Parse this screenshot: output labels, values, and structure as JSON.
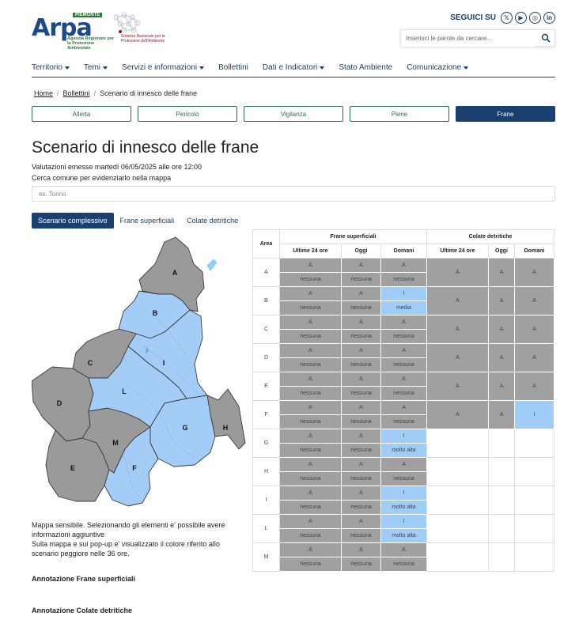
{
  "header": {
    "logo_text_main": "Arpa",
    "logo_region": "PIEMONTE",
    "logo_subtitle": "Agenzia Regionale per la Protezione Ambientale",
    "snpa_text": "Sistema Nazionale per la Protezione dell'Ambiente",
    "social_label": "SEGUICI SU",
    "social": [
      {
        "name": "x-icon",
        "glyph": "𝕏"
      },
      {
        "name": "youtube-icon",
        "glyph": "▶"
      },
      {
        "name": "instagram-icon",
        "glyph": "◎"
      },
      {
        "name": "linkedin-icon",
        "glyph": "in"
      }
    ],
    "search_placeholder": "Inserisci le parole da cercare..."
  },
  "nav": [
    {
      "label": "Territorio",
      "dropdown": true
    },
    {
      "label": "Temi",
      "dropdown": true
    },
    {
      "label": "Servizi e informazioni",
      "dropdown": true
    },
    {
      "label": "Bollettini",
      "dropdown": false
    },
    {
      "label": "Dati e Indicatori",
      "dropdown": true
    },
    {
      "label": "Stato Ambiente",
      "dropdown": false
    },
    {
      "label": "Comunicazione",
      "dropdown": true
    }
  ],
  "breadcrumb": {
    "home": "Home",
    "bollettini": "Bollettini",
    "current": "Scenario di innesco delle frane",
    "separator": "/"
  },
  "category_tabs": [
    {
      "label": "Allerta",
      "active": false
    },
    {
      "label": "Pericolo",
      "active": false
    },
    {
      "label": "Vigilanza",
      "active": false
    },
    {
      "label": "Piene",
      "active": false
    },
    {
      "label": "Frane",
      "active": true
    }
  ],
  "page": {
    "title": "Scenario di innesco delle frane",
    "valuation": "Valutazioni emesse martedì 06/05/2025 alle ore 12:00",
    "search_label": "Cerca comune per evidenziarlo nella mappa",
    "search_placeholder": "es. Torino"
  },
  "scenario_tabs": [
    {
      "label": "Scenario complessivo",
      "active": true
    },
    {
      "label": "Frane superficiali",
      "active": false
    },
    {
      "label": "Colate detritiche",
      "active": false
    }
  ],
  "map": {
    "note_1": "Mappa sensibile. Selezionando gli elementi e' possibile avere informazioni aggiuntive",
    "note_2": "Sulla mappa e sui pop-up e' visualizzato il colore riferito allo scenario peggiore nelle 36 ore.",
    "colors": {
      "grey": "#9a9a9a",
      "blue": "#a3cdf7",
      "border": "#3a3a3a",
      "lake": "#8fd0f0"
    },
    "areas": [
      {
        "id": "A",
        "level": "grey"
      },
      {
        "id": "B",
        "level": "blue"
      },
      {
        "id": "C",
        "level": "grey"
      },
      {
        "id": "D",
        "level": "grey"
      },
      {
        "id": "E",
        "level": "grey"
      },
      {
        "id": "F",
        "level": "blue"
      },
      {
        "id": "G",
        "level": "blue"
      },
      {
        "id": "H",
        "level": "grey"
      },
      {
        "id": "I",
        "level": "blue"
      },
      {
        "id": "L",
        "level": "blue"
      },
      {
        "id": "M",
        "level": "grey"
      }
    ]
  },
  "table": {
    "header_area": "Area",
    "group_frane": "Frane superficiali",
    "group_colate": "Colate detritiche",
    "sub_ultime": "Ultime 24 ore",
    "sub_oggi": "Oggi",
    "sub_domani": "Domani",
    "rows": [
      {
        "area": "A",
        "fs": [
          [
            "A",
            "nessuna"
          ],
          [
            "A",
            "nessuna"
          ],
          [
            "A",
            "nessuna"
          ]
        ],
        "fs_hl": [
          false,
          false,
          false
        ],
        "cd": [
          "A",
          "A",
          "A"
        ],
        "cd_hl": [
          false,
          false,
          false
        ]
      },
      {
        "area": "B",
        "fs": [
          [
            "A",
            "nessuna"
          ],
          [
            "A",
            "nessuna"
          ],
          [
            "I",
            "media"
          ]
        ],
        "fs_hl": [
          false,
          false,
          true
        ],
        "cd": [
          "A",
          "A",
          "A"
        ],
        "cd_hl": [
          false,
          false,
          false
        ]
      },
      {
        "area": "C",
        "fs": [
          [
            "A",
            "nessuna"
          ],
          [
            "A",
            "nessuna"
          ],
          [
            "A",
            "nessuna"
          ]
        ],
        "fs_hl": [
          false,
          false,
          false
        ],
        "cd": [
          "A",
          "A",
          "A"
        ],
        "cd_hl": [
          false,
          false,
          false
        ]
      },
      {
        "area": "D",
        "fs": [
          [
            "A",
            "nessuna"
          ],
          [
            "A",
            "nessuna"
          ],
          [
            "A",
            "nessuna"
          ]
        ],
        "fs_hl": [
          false,
          false,
          false
        ],
        "cd": [
          "A",
          "A",
          "A"
        ],
        "cd_hl": [
          false,
          false,
          false
        ]
      },
      {
        "area": "E",
        "fs": [
          [
            "A",
            "nessuna"
          ],
          [
            "A",
            "nessuna"
          ],
          [
            "A",
            "nessuna"
          ]
        ],
        "fs_hl": [
          false,
          false,
          false
        ],
        "cd": [
          "A",
          "A",
          "A"
        ],
        "cd_hl": [
          false,
          false,
          false
        ]
      },
      {
        "area": "F",
        "fs": [
          [
            "A",
            "nessuna"
          ],
          [
            "A",
            "nessuna"
          ],
          [
            "A",
            "nessuna"
          ]
        ],
        "fs_hl": [
          false,
          false,
          false
        ],
        "cd": [
          "A",
          "A",
          "I"
        ],
        "cd_hl": [
          false,
          false,
          true
        ]
      },
      {
        "area": "G",
        "fs": [
          [
            "A",
            "nessuna"
          ],
          [
            "A",
            "nessuna"
          ],
          [
            "I",
            "molto alta"
          ]
        ],
        "fs_hl": [
          false,
          false,
          true
        ],
        "cd": null
      },
      {
        "area": "H",
        "fs": [
          [
            "A",
            "nessuna"
          ],
          [
            "A",
            "nessuna"
          ],
          [
            "A",
            "nessuna"
          ]
        ],
        "fs_hl": [
          false,
          false,
          false
        ],
        "cd": null
      },
      {
        "area": "I",
        "fs": [
          [
            "A",
            "nessuna"
          ],
          [
            "A",
            "nessuna"
          ],
          [
            "I",
            "molto alta"
          ]
        ],
        "fs_hl": [
          false,
          false,
          true
        ],
        "cd": null
      },
      {
        "area": "L",
        "fs": [
          [
            "A",
            "nessuna"
          ],
          [
            "A",
            "nessuna"
          ],
          [
            "I",
            "molto alta"
          ]
        ],
        "fs_hl": [
          false,
          false,
          true
        ],
        "cd": null
      },
      {
        "area": "M",
        "fs": [
          [
            "A",
            "nessuna"
          ],
          [
            "A",
            "nessuna"
          ],
          [
            "A",
            "nessuna"
          ]
        ],
        "fs_hl": [
          false,
          false,
          false
        ],
        "cd": null
      }
    ]
  },
  "annotations": {
    "frane": "Annotazione Frane superficiali",
    "colate": "Annotazione Colate detritiche"
  }
}
